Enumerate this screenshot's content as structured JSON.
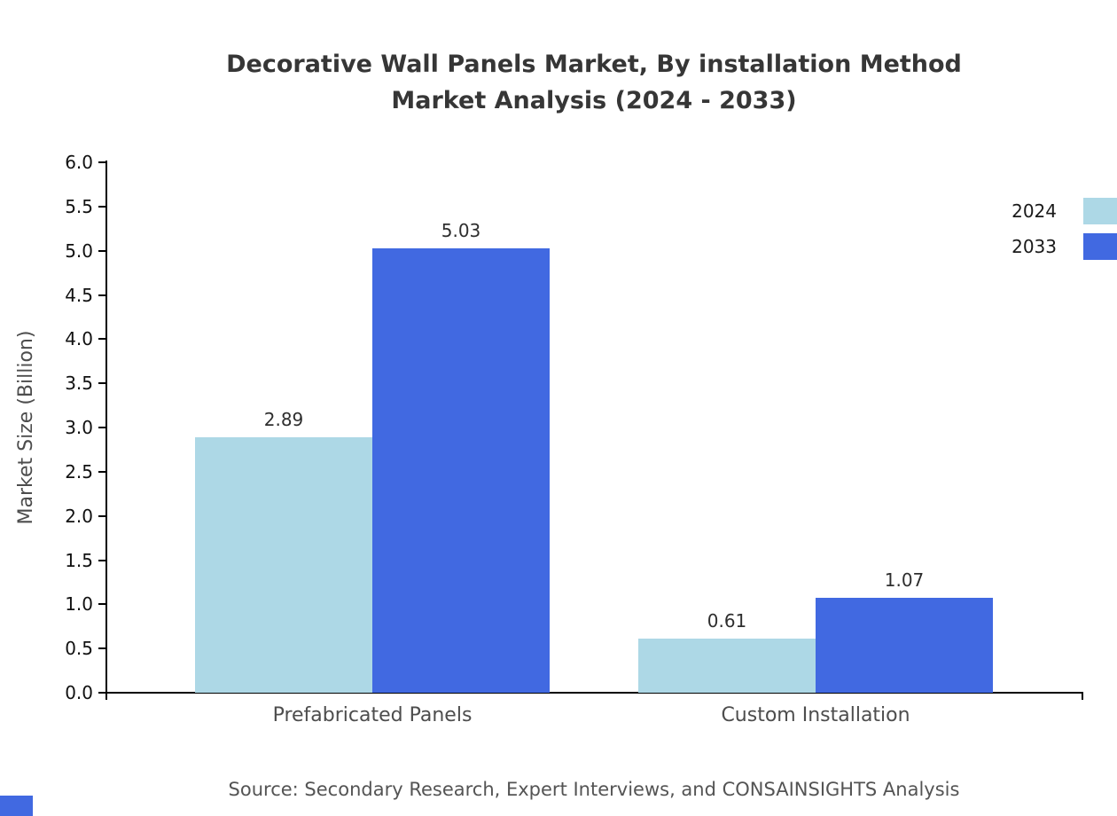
{
  "title": {
    "line1": "Decorative Wall Panels Market, By installation Method",
    "line2": "Market Analysis (2024 - 2033)"
  },
  "source": "Source: Secondary Research, Expert Interviews, and CONSAINSIGHTS Analysis",
  "chart_data": {
    "type": "bar",
    "title": "Decorative Wall Panels Market, By installation Method — Market Analysis (2024 - 2033)",
    "categories": [
      "Prefabricated Panels",
      "Custom Installation"
    ],
    "series": [
      {
        "name": "2024",
        "color": "#ADD8E6",
        "values": [
          2.89,
          0.61
        ]
      },
      {
        "name": "2033",
        "color": "#4169E1",
        "values": [
          5.03,
          1.07
        ]
      }
    ],
    "xlabel": "",
    "ylabel": "Market Size (Billion)",
    "ylim": [
      0,
      6
    ],
    "ytick_step": 0.5,
    "ytick_decimals": 1,
    "grid": false,
    "legend_position": "top-right",
    "value_labels": true
  },
  "colors": {
    "title": "#363636",
    "axis": "#000000",
    "tick_label": "#111111",
    "category_label": "#4d4d4d",
    "source": "#545454",
    "series_2024": "#ADD8E6",
    "series_2033": "#4169E1"
  }
}
